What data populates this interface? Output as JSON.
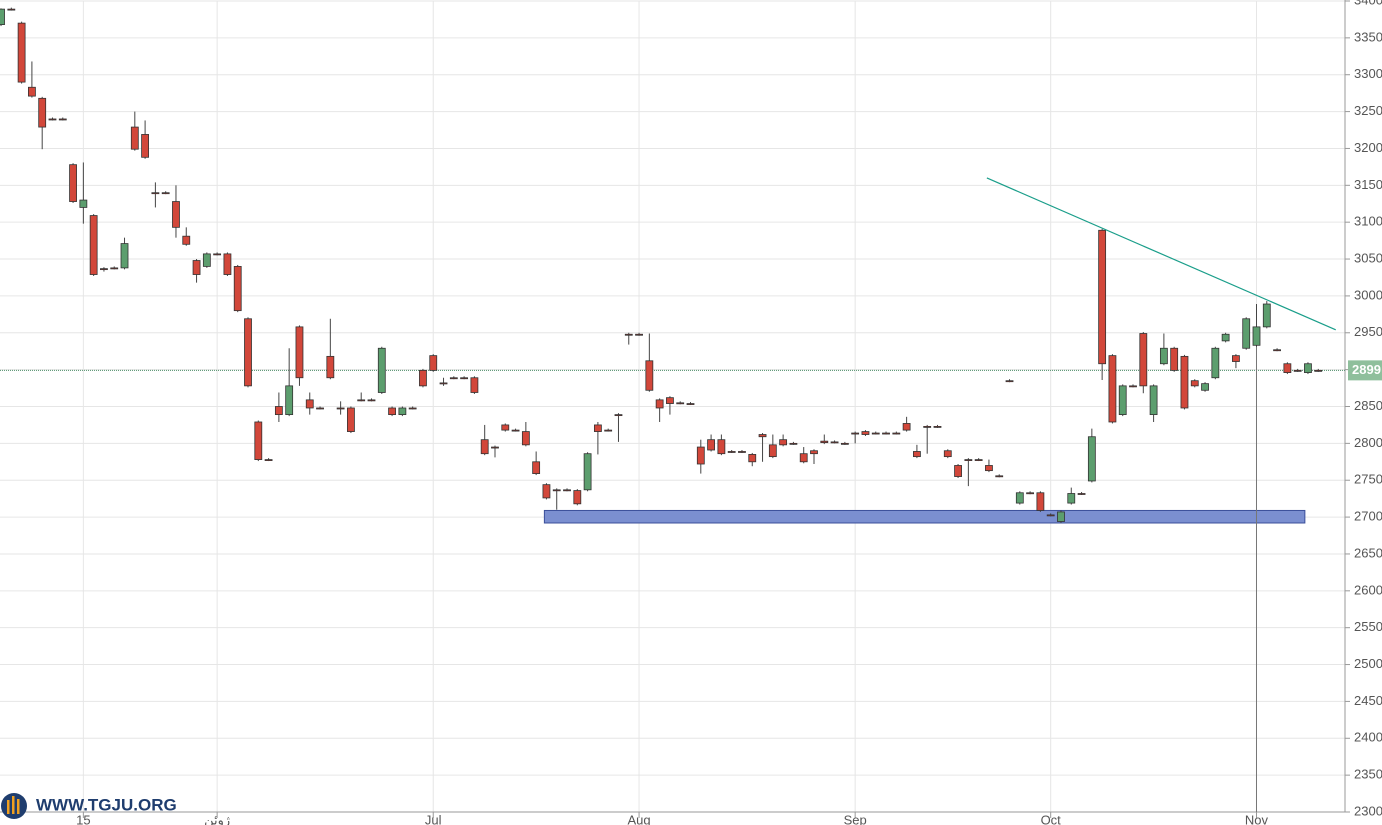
{
  "chart_data": {
    "type": "candlestick",
    "watermark": "WWW.TGJU.ORG",
    "up_color": "#5c9e6e",
    "down_color": "#d2473a",
    "x": [
      0,
      1,
      2,
      3,
      4,
      5,
      6,
      7,
      8,
      9,
      10,
      11,
      12,
      13,
      14,
      15,
      16,
      17,
      18,
      19,
      20,
      21,
      22,
      23,
      24,
      25,
      26,
      27,
      28,
      29,
      30,
      31,
      32,
      33,
      34,
      35,
      36,
      37,
      38,
      39,
      40,
      41,
      42,
      43,
      44,
      45,
      46,
      47,
      48,
      49,
      50,
      51,
      52,
      53,
      54,
      55,
      56,
      57,
      58,
      59,
      60,
      61,
      62,
      63,
      64,
      65,
      66,
      67,
      68,
      69,
      70,
      71,
      72,
      73,
      74,
      75,
      76,
      77,
      78,
      79,
      80,
      81,
      82,
      83,
      84,
      85,
      86,
      87,
      88,
      89,
      90,
      91,
      92,
      93,
      94,
      95,
      96,
      97,
      98,
      99,
      100,
      101,
      102,
      103,
      104,
      105,
      106,
      107,
      108,
      109,
      110,
      111,
      112,
      113,
      114,
      115,
      116,
      117,
      118,
      119,
      120,
      121,
      122,
      123,
      124,
      125,
      126,
      127,
      128
    ],
    "open": [
      3368,
      3389,
      3370,
      3283,
      3268,
      3240,
      3240,
      3178,
      3120,
      3109,
      3037,
      3038,
      3038,
      3229,
      3219,
      3140,
      3140,
      3128,
      3081,
      3048,
      3040,
      3057,
      3057,
      3040,
      2969,
      2829,
      2778,
      2850,
      2839,
      2958,
      2859,
      2848,
      2918,
      2848,
      2848,
      2859,
      2859,
      2869,
      2848,
      2839,
      2848,
      2899,
      2919,
      2882,
      2889,
      2889,
      2889,
      2805,
      2795,
      2825,
      2818,
      2816,
      2775,
      2744,
      2737,
      2737,
      2736,
      2737,
      2825,
      2818,
      2839,
      2948,
      2948,
      2912,
      2859,
      2862,
      2855,
      2854,
      2795,
      2805,
      2805,
      2789,
      2789,
      2785,
      2812,
      2798,
      2805,
      2800,
      2786,
      2790,
      2803,
      2802,
      2800,
      2814,
      2816,
      2814,
      2814,
      2814,
      2827,
      2789,
      2823,
      2823,
      2790,
      2770,
      2778,
      2778,
      2770,
      2756,
      2885,
      2719,
      2733,
      2733,
      2703,
      2694,
      2719,
      2732,
      2749,
      3089,
      2919,
      2839,
      2878,
      2949,
      2839,
      2908,
      2929,
      2918,
      2885,
      2872,
      2889,
      2939,
      2919,
      2929,
      2933,
      2958,
      2927,
      2908,
      2899,
      2896,
      2899
    ],
    "high": [
      3390,
      3391,
      3372,
      3318,
      3270,
      3242,
      3242,
      3180,
      3181,
      3111,
      3039,
      3040,
      3079,
      3250,
      3238,
      3154,
      3142,
      3150,
      3093,
      3050,
      3059,
      3059,
      3059,
      3042,
      2971,
      2831,
      2780,
      2869,
      2929,
      2960,
      2869,
      2850,
      2969,
      2857,
      2850,
      2869,
      2861,
      2931,
      2850,
      2850,
      2850,
      2901,
      2921,
      2889,
      2891,
      2891,
      2891,
      2825,
      2797,
      2827,
      2820,
      2829,
      2789,
      2746,
      2739,
      2739,
      2738,
      2788,
      2829,
      2820,
      2841,
      2950,
      2950,
      2949,
      2861,
      2864,
      2857,
      2856,
      2805,
      2812,
      2812,
      2791,
      2791,
      2787,
      2814,
      2812,
      2812,
      2802,
      2795,
      2792,
      2812,
      2804,
      2802,
      2816,
      2818,
      2816,
      2816,
      2816,
      2836,
      2798,
      2825,
      2825,
      2792,
      2772,
      2780,
      2780,
      2778,
      2758,
      2887,
      2735,
      2735,
      2735,
      2705,
      2709,
      2740,
      2734,
      2820,
      3091,
      2921,
      2880,
      2880,
      2951,
      2880,
      2949,
      2931,
      2920,
      2887,
      2883,
      2931,
      2950,
      2921,
      2971,
      2989,
      2993,
      2929,
      2910,
      2901,
      2910,
      2901
    ],
    "low": [
      3366,
      3387,
      3288,
      3269,
      3199,
      3238,
      3238,
      3126,
      3098,
      3027,
      3033,
      3036,
      3036,
      3197,
      3186,
      3120,
      3138,
      3079,
      3068,
      3018,
      3038,
      3055,
      3027,
      2978,
      2876,
      2776,
      2776,
      2829,
      2837,
      2878,
      2839,
      2846,
      2887,
      2839,
      2814,
      2857,
      2857,
      2867,
      2837,
      2837,
      2846,
      2876,
      2897,
      2878,
      2887,
      2887,
      2867,
      2784,
      2781,
      2816,
      2816,
      2796,
      2757,
      2724,
      2710,
      2735,
      2716,
      2735,
      2785,
      2816,
      2802,
      2934,
      2946,
      2870,
      2829,
      2839,
      2853,
      2852,
      2759,
      2789,
      2784,
      2787,
      2787,
      2769,
      2775,
      2780,
      2796,
      2798,
      2773,
      2772,
      2799,
      2800,
      2798,
      2800,
      2810,
      2812,
      2812,
      2812,
      2816,
      2780,
      2786,
      2821,
      2780,
      2753,
      2742,
      2776,
      2761,
      2754,
      2883,
      2717,
      2731,
      2707,
      2701,
      2692,
      2717,
      2730,
      2747,
      2886,
      2827,
      2837,
      2876,
      2868,
      2829,
      2906,
      2897,
      2846,
      2876,
      2870,
      2887,
      2937,
      2902,
      2927,
      2931,
      2956,
      2925,
      2894,
      2897,
      2894,
      2897
    ],
    "close": [
      3389,
      3389,
      3290,
      3271,
      3229,
      3240,
      3240,
      3128,
      3130,
      3029,
      3037,
      3038,
      3071,
      3199,
      3188,
      3140,
      3140,
      3093,
      3070,
      3029,
      3057,
      3057,
      3029,
      2980,
      2878,
      2778,
      2778,
      2839,
      2878,
      2889,
      2848,
      2848,
      2889,
      2848,
      2816,
      2859,
      2859,
      2929,
      2839,
      2848,
      2848,
      2878,
      2899,
      2882,
      2889,
      2889,
      2869,
      2786,
      2795,
      2818,
      2818,
      2798,
      2759,
      2726,
      2737,
      2737,
      2718,
      2786,
      2816,
      2818,
      2839,
      2948,
      2948,
      2872,
      2848,
      2854,
      2855,
      2854,
      2772,
      2791,
      2786,
      2789,
      2789,
      2775,
      2809,
      2782,
      2798,
      2800,
      2775,
      2786,
      2801,
      2802,
      2800,
      2814,
      2812,
      2814,
      2814,
      2814,
      2818,
      2782,
      2823,
      2823,
      2782,
      2755,
      2778,
      2778,
      2763,
      2756,
      2885,
      2733,
      2733,
      2709,
      2703,
      2707,
      2732,
      2732,
      2809,
      2908,
      2829,
      2878,
      2878,
      2878,
      2878,
      2929,
      2899,
      2848,
      2878,
      2881,
      2929,
      2948,
      2911,
      2969,
      2958,
      2989,
      2927,
      2896,
      2899,
      2908,
      2899
    ],
    "xlim": [
      -0.1,
      130.6
    ],
    "xticks": [
      {
        "value": 8,
        "label": "15"
      },
      {
        "value": 21,
        "label": "ژوئن"
      },
      {
        "value": 42,
        "label": "Jul"
      },
      {
        "value": 62,
        "label": "Aug"
      },
      {
        "value": 83,
        "label": "Sep"
      },
      {
        "value": 102,
        "label": "Oct"
      },
      {
        "value": 122,
        "label": "Nov"
      }
    ],
    "ylim": [
      2300,
      3400
    ],
    "yticks": [
      2300,
      2350,
      2400,
      2450,
      2500,
      2550,
      2600,
      2650,
      2700,
      2750,
      2800,
      2850,
      2900,
      2950,
      3000,
      3050,
      3100,
      3150,
      3200,
      3250,
      3300,
      3350,
      3400
    ],
    "grid": true,
    "trendline": {
      "x": [
        95.8,
        129.7
      ],
      "y": [
        3160,
        2954
      ],
      "color": "#1a9e8a"
    },
    "zone": {
      "x": [
        52.8,
        126.7
      ],
      "y": [
        2692,
        2709
      ],
      "color": "#7b8fd0"
    },
    "last_price": 2899,
    "crosshair_x": 122
  }
}
